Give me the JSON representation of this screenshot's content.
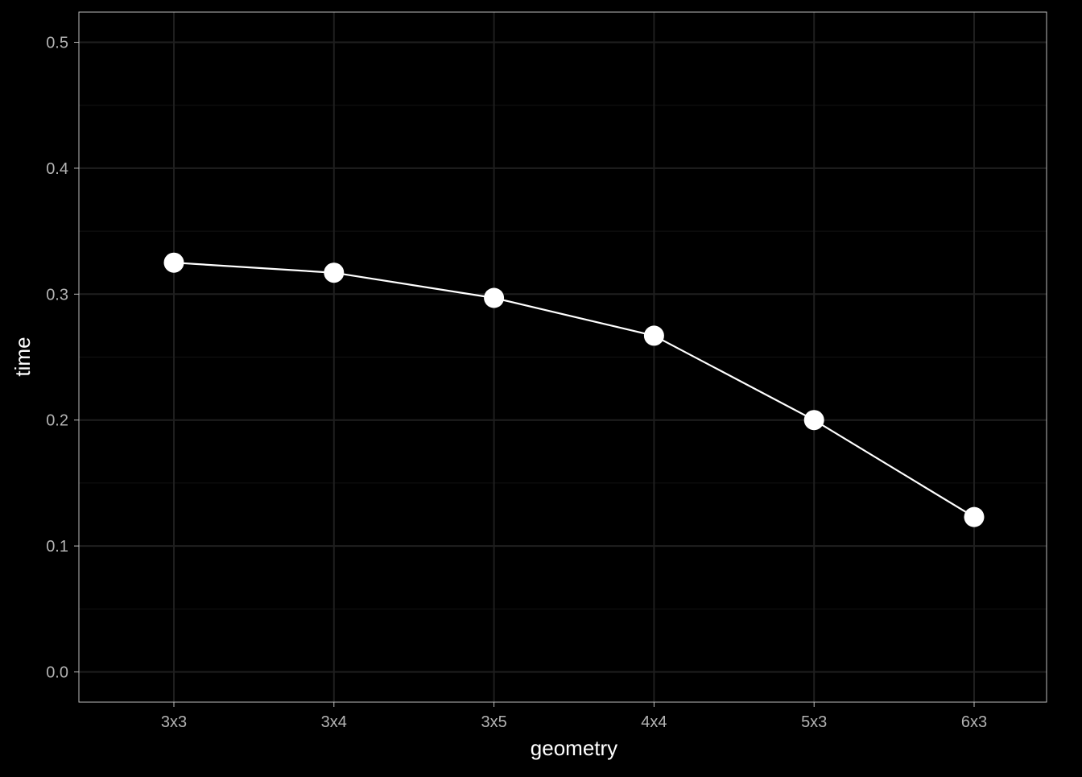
{
  "chart_data": {
    "type": "line",
    "categories": [
      "3x3",
      "3x4",
      "3x5",
      "4x4",
      "5x3",
      "6x3"
    ],
    "series": [
      {
        "values": [
          0.325,
          0.317,
          0.297,
          0.267,
          0.2,
          0.123
        ]
      }
    ],
    "xlabel": "geometry",
    "ylabel": "time",
    "ylim": [
      -0.024,
      0.524
    ],
    "yticks": [
      0.0,
      0.1,
      0.2,
      0.3,
      0.4,
      0.5
    ],
    "ytick_labels": [
      "0.0",
      "0.1",
      "0.2",
      "0.3",
      "0.4",
      "0.5"
    ],
    "grid": true,
    "legend": "none"
  },
  "colors": {
    "background": "#000000",
    "panel_border": "#bdbdbd",
    "grid_major": "#1f1f1f",
    "grid_minor": "#121212",
    "tick_label": "#b3b3b3",
    "axis_title": "#ffffff",
    "line": "#ffffff",
    "point": "#ffffff"
  }
}
